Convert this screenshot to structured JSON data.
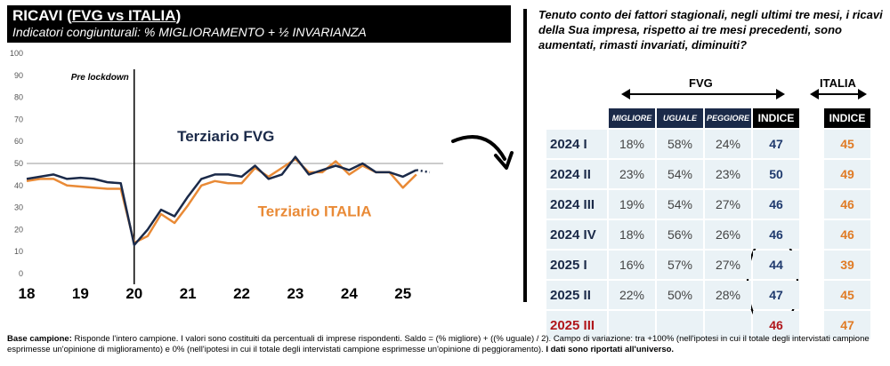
{
  "header": {
    "title_prefix": "RICAVI (",
    "title_underlined": "FVG vs ITALIA",
    "title_suffix": ")",
    "subtitle": "Indicatori congiunturali: % MIGLIORAMENTO + ½ INVARIANZA"
  },
  "chart_data": {
    "type": "line",
    "ylim": [
      0,
      100
    ],
    "yticks": [
      0,
      10,
      20,
      30,
      40,
      50,
      60,
      70,
      80,
      90,
      100
    ],
    "xlim": [
      2018,
      2025.75
    ],
    "xticks": [
      {
        "label": "18",
        "value": 2018
      },
      {
        "label": "19",
        "value": 2019
      },
      {
        "label": "20",
        "value": 2020
      },
      {
        "label": "21",
        "value": 2021
      },
      {
        "label": "22",
        "value": 2022
      },
      {
        "label": "23",
        "value": 2023
      },
      {
        "label": "24",
        "value": 2024
      },
      {
        "label": "25",
        "value": 2025
      }
    ],
    "reference_line": 50,
    "vline": 2020,
    "vline_label": "Pre lockdown",
    "series": [
      {
        "name": "Terziario FVG",
        "color": "#1b2a49",
        "points": [
          [
            2018,
            43
          ],
          [
            2018.25,
            44
          ],
          [
            2018.5,
            45
          ],
          [
            2018.75,
            43
          ],
          [
            2019,
            43.5
          ],
          [
            2019.25,
            43
          ],
          [
            2019.5,
            41.5
          ],
          [
            2019.75,
            41
          ],
          [
            2020,
            13
          ],
          [
            2020.25,
            20
          ],
          [
            2020.5,
            29
          ],
          [
            2020.75,
            26
          ],
          [
            2021,
            35
          ],
          [
            2021.25,
            43
          ],
          [
            2021.5,
            45
          ],
          [
            2021.75,
            45
          ],
          [
            2022,
            44
          ],
          [
            2022.25,
            49
          ],
          [
            2022.5,
            43
          ],
          [
            2022.75,
            45
          ],
          [
            2023,
            53
          ],
          [
            2023.25,
            45
          ],
          [
            2023.5,
            47
          ],
          [
            2023.75,
            49
          ],
          [
            2024,
            47
          ],
          [
            2024.25,
            50
          ],
          [
            2024.5,
            46
          ],
          [
            2024.75,
            46
          ],
          [
            2025,
            44
          ],
          [
            2025.25,
            47
          ]
        ]
      },
      {
        "name": "Terziario ITALIA",
        "color": "#e98a36",
        "points": [
          [
            2018,
            42
          ],
          [
            2018.25,
            43
          ],
          [
            2018.5,
            43
          ],
          [
            2018.75,
            40
          ],
          [
            2019,
            39.5
          ],
          [
            2019.25,
            39
          ],
          [
            2019.5,
            38.5
          ],
          [
            2019.75,
            38.5
          ],
          [
            2020,
            14
          ],
          [
            2020.25,
            17
          ],
          [
            2020.5,
            27
          ],
          [
            2020.75,
            23
          ],
          [
            2021,
            31
          ],
          [
            2021.25,
            40
          ],
          [
            2021.5,
            42
          ],
          [
            2021.75,
            41
          ],
          [
            2022,
            41
          ],
          [
            2022.25,
            48
          ],
          [
            2022.5,
            44
          ],
          [
            2022.75,
            48
          ],
          [
            2023,
            52
          ],
          [
            2023.25,
            46
          ],
          [
            2023.5,
            46
          ],
          [
            2023.75,
            51
          ],
          [
            2024,
            45
          ],
          [
            2024.25,
            49
          ],
          [
            2024.5,
            46
          ],
          [
            2024.75,
            46
          ],
          [
            2025,
            39
          ],
          [
            2025.25,
            45
          ]
        ]
      }
    ],
    "forecast": {
      "from": [
        2025.25,
        47
      ],
      "to": [
        2025.5,
        46
      ],
      "color": "#1b2a49"
    }
  },
  "table": {
    "fvg_label": "FVG",
    "italia_label": "ITALIA",
    "columns": [
      "MIGLIORE",
      "UGUALE",
      "PEGGIORE",
      "INDICE"
    ],
    "italia_column": "INDICE",
    "rows": [
      {
        "label": "2024 I",
        "migliore": "18%",
        "uguale": "58%",
        "peggiore": "24%",
        "indice": "47",
        "italia": "45"
      },
      {
        "label": "2024 II",
        "migliore": "23%",
        "uguale": "54%",
        "peggiore": "23%",
        "indice": "50",
        "italia": "49"
      },
      {
        "label": "2024 III",
        "migliore": "19%",
        "uguale": "54%",
        "peggiore": "27%",
        "indice": "46",
        "italia": "46"
      },
      {
        "label": "2024 IV",
        "migliore": "18%",
        "uguale": "56%",
        "peggiore": "26%",
        "indice": "46",
        "italia": "46"
      },
      {
        "label": "2025 I",
        "migliore": "16%",
        "uguale": "57%",
        "peggiore": "27%",
        "indice": "44",
        "italia": "39"
      },
      {
        "label": "2025 II",
        "migliore": "22%",
        "uguale": "50%",
        "peggiore": "28%",
        "indice": "47",
        "italia": "45"
      },
      {
        "label": "2025 III",
        "migliore": "",
        "uguale": "",
        "peggiore": "",
        "indice": "46",
        "italia": "47"
      }
    ],
    "colors": {
      "fvg_index": "#1f3a6e",
      "forecast": "#b0161b",
      "italia": "#e07b25",
      "header_bg": "#1b2a49",
      "cell_bg": "#eaf2f6"
    }
  },
  "question": "Tenuto conto dei fattori stagionali, negli ultimi tre mesi, i ricavi della Sua impresa, rispetto ai tre mesi precedenti, sono aumentati, rimasti invariati, diminuiti?",
  "footnote": {
    "bold_label": "Base campione:",
    "text": " Risponde l'intero campione. I valori sono costituiti da percentuali di imprese rispondenti. Saldo = (% migliore) + ((% uguale) / 2). Campo di variazione: tra +100% (nell'ipotesi in cui il totale degli intervistati campione esprimesse un'opinione di miglioramento) e 0% (nell'ipotesi in cui il totale degli intervistati campione esprimesse un'opinione di peggioramento). ",
    "bold_end": "I dati sono riportati all'universo."
  }
}
